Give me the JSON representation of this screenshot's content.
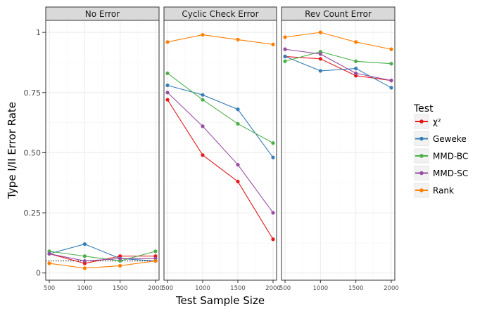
{
  "chart_data": {
    "type": "line",
    "facets": [
      "No Error",
      "Cyclic Check Error",
      "Rev Count Error"
    ],
    "xlabel": "Test Sample Size",
    "ylabel": "Type I/II Error Rate",
    "x": [
      500,
      1000,
      1500,
      2000
    ],
    "x_tick_labels": [
      "500",
      "1000",
      "1500",
      "2000"
    ],
    "y_ticks": [
      0,
      0.25,
      0.5,
      0.75,
      1
    ],
    "y_tick_labels": [
      "0",
      "0.25",
      "0.50",
      "0.75",
      "1"
    ],
    "ylim": [
      -0.03,
      1.05
    ],
    "xlim": [
      450,
      2050
    ],
    "grid": true,
    "reference_line": {
      "facet": "No Error",
      "y": 0.05,
      "style": "dotted"
    },
    "legend": {
      "title": "Test",
      "position": "right",
      "entries": [
        "χ²",
        "Geweke",
        "MMD-BC",
        "MMD-SC",
        "Rank"
      ]
    },
    "series": [
      {
        "name": "χ²",
        "color": "#e41a1c",
        "values": {
          "No Error": [
            0.08,
            0.04,
            0.07,
            0.07
          ],
          "Cyclic Check Error": [
            0.72,
            0.49,
            0.38,
            0.14
          ],
          "Rev Count Error": [
            0.9,
            0.89,
            0.82,
            0.8
          ]
        }
      },
      {
        "name": "Geweke",
        "color": "#377eb8",
        "values": {
          "No Error": [
            0.08,
            0.12,
            0.06,
            0.05
          ],
          "Cyclic Check Error": [
            0.78,
            0.74,
            0.68,
            0.48
          ],
          "Rev Count Error": [
            0.9,
            0.84,
            0.85,
            0.77
          ]
        }
      },
      {
        "name": "MMD-BC",
        "color": "#4daf4a",
        "values": {
          "No Error": [
            0.09,
            0.07,
            0.05,
            0.09
          ],
          "Cyclic Check Error": [
            0.83,
            0.72,
            0.62,
            0.54
          ],
          "Rev Count Error": [
            0.88,
            0.92,
            0.88,
            0.87
          ]
        }
      },
      {
        "name": "MMD-SC",
        "color": "#984ea3",
        "values": {
          "No Error": [
            0.08,
            0.05,
            0.06,
            0.06
          ],
          "Cyclic Check Error": [
            0.75,
            0.61,
            0.45,
            0.25
          ],
          "Rev Count Error": [
            0.93,
            0.91,
            0.83,
            0.8
          ]
        }
      },
      {
        "name": "Rank",
        "color": "#ff7f00",
        "values": {
          "No Error": [
            0.04,
            0.02,
            0.03,
            0.05
          ],
          "Cyclic Check Error": [
            0.96,
            0.99,
            0.97,
            0.95
          ],
          "Rev Count Error": [
            0.98,
            1.0,
            0.96,
            0.93
          ]
        }
      }
    ]
  }
}
